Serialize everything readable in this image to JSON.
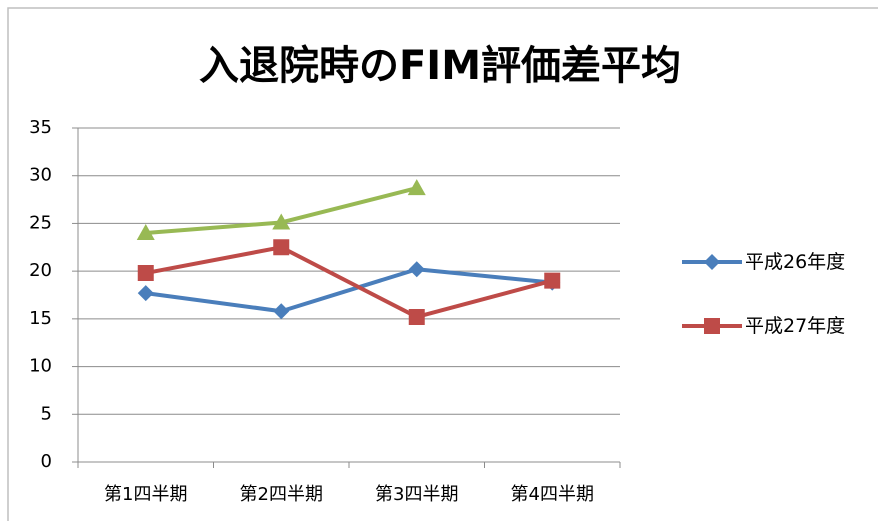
{
  "chart_data": {
    "type": "line",
    "title": "入退院時のFIM評価差平均",
    "categories": [
      "第1四半期",
      "第2四半期",
      "第3四半期",
      "第4四半期"
    ],
    "series": [
      {
        "name": "平成26年度",
        "color": "#4a7ebb",
        "marker": "diamond",
        "values": [
          17.7,
          15.8,
          20.2,
          18.8
        ]
      },
      {
        "name": "平成27年度",
        "color": "#be4b48",
        "marker": "square",
        "values": [
          19.8,
          22.5,
          15.2,
          19.0
        ]
      },
      {
        "color": "#98b954",
        "marker": "triangle",
        "values": [
          24.0,
          25.1,
          28.7,
          null
        ]
      }
    ],
    "ylim": [
      0,
      35
    ],
    "yticks": [
      0,
      5,
      10,
      15,
      20,
      25,
      30,
      35
    ],
    "grid": true,
    "legend": "right"
  }
}
